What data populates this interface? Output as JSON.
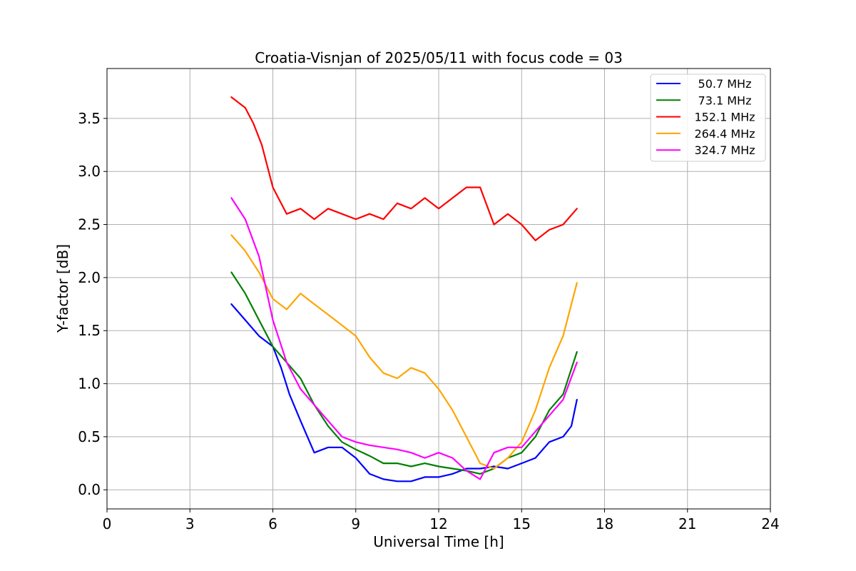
{
  "chart_data": {
    "type": "line",
    "title": "Croatia-Visnjan of 2025/05/11 with focus code = 03",
    "xlabel": "Universal Time [h]",
    "ylabel": "Y-factor [dB]",
    "xlim": [
      0,
      24
    ],
    "ylim": [
      -0.18,
      3.97
    ],
    "xticks": [
      0,
      3,
      6,
      9,
      12,
      15,
      18,
      21,
      24
    ],
    "xtick_labels": [
      "0",
      "3",
      "6",
      "9",
      "12",
      "15",
      "18",
      "21",
      "24"
    ],
    "yticks": [
      0.0,
      0.5,
      1.0,
      1.5,
      2.0,
      2.5,
      3.0,
      3.5
    ],
    "ytick_labels": [
      "0.0",
      "0.5",
      "1.0",
      "1.5",
      "2.0",
      "2.5",
      "3.0",
      "3.5"
    ],
    "grid": true,
    "legend_position": "top-right",
    "series": [
      {
        "name": "50.7 MHz",
        "color": "#0000ff",
        "x": [
          4.5,
          5.0,
          5.5,
          6.0,
          6.3,
          6.6,
          7.0,
          7.5,
          8.0,
          8.5,
          9.0,
          9.5,
          10.0,
          10.5,
          11.0,
          11.5,
          12.0,
          12.5,
          13.0,
          13.5,
          14.0,
          14.5,
          15.0,
          15.5,
          16.0,
          16.5,
          16.8,
          17.0
        ],
        "values": [
          1.75,
          1.6,
          1.45,
          1.35,
          1.15,
          0.9,
          0.65,
          0.35,
          0.4,
          0.4,
          0.3,
          0.15,
          0.1,
          0.08,
          0.08,
          0.12,
          0.12,
          0.15,
          0.2,
          0.2,
          0.22,
          0.2,
          0.25,
          0.3,
          0.45,
          0.5,
          0.6,
          0.85
        ]
      },
      {
        "name": "73.1 MHz",
        "color": "#008000",
        "x": [
          4.5,
          5.0,
          5.5,
          6.0,
          6.5,
          7.0,
          7.5,
          8.0,
          8.5,
          9.0,
          9.5,
          10.0,
          10.5,
          11.0,
          11.5,
          12.0,
          12.5,
          13.0,
          13.5,
          14.0,
          14.5,
          15.0,
          15.5,
          16.0,
          16.5,
          17.0
        ],
        "values": [
          2.05,
          1.85,
          1.6,
          1.35,
          1.2,
          1.05,
          0.8,
          0.6,
          0.45,
          0.38,
          0.32,
          0.25,
          0.25,
          0.22,
          0.25,
          0.22,
          0.2,
          0.18,
          0.15,
          0.2,
          0.3,
          0.35,
          0.5,
          0.75,
          0.9,
          1.3
        ]
      },
      {
        "name": "152.1 MHz",
        "color": "#ff0000",
        "x": [
          4.5,
          5.0,
          5.3,
          5.6,
          6.0,
          6.5,
          7.0,
          7.5,
          8.0,
          8.5,
          9.0,
          9.5,
          10.0,
          10.5,
          11.0,
          11.5,
          12.0,
          12.5,
          13.0,
          13.5,
          14.0,
          14.5,
          15.0,
          15.5,
          16.0,
          16.5,
          17.0
        ],
        "values": [
          3.7,
          3.6,
          3.45,
          3.25,
          2.85,
          2.6,
          2.65,
          2.55,
          2.65,
          2.6,
          2.55,
          2.6,
          2.55,
          2.7,
          2.65,
          2.75,
          2.65,
          2.75,
          2.85,
          2.85,
          2.5,
          2.6,
          2.5,
          2.35,
          2.45,
          2.5,
          2.65
        ]
      },
      {
        "name": "264.4 MHz",
        "color": "#ffa500",
        "x": [
          4.5,
          5.0,
          5.5,
          6.0,
          6.5,
          7.0,
          7.5,
          8.0,
          8.5,
          9.0,
          9.5,
          10.0,
          10.5,
          11.0,
          11.5,
          12.0,
          12.5,
          13.0,
          13.5,
          14.0,
          14.5,
          15.0,
          15.5,
          16.0,
          16.5,
          17.0
        ],
        "values": [
          2.4,
          2.25,
          2.05,
          1.8,
          1.7,
          1.85,
          1.75,
          1.65,
          1.55,
          1.45,
          1.25,
          1.1,
          1.05,
          1.15,
          1.1,
          0.95,
          0.75,
          0.5,
          0.25,
          0.2,
          0.3,
          0.45,
          0.75,
          1.15,
          1.45,
          1.95
        ]
      },
      {
        "name": "324.7 MHz",
        "color": "#ff00ff",
        "x": [
          4.5,
          5.0,
          5.5,
          6.0,
          6.5,
          7.0,
          7.5,
          8.0,
          8.5,
          9.0,
          9.5,
          10.0,
          10.5,
          11.0,
          11.5,
          12.0,
          12.5,
          13.0,
          13.5,
          14.0,
          14.5,
          15.0,
          15.5,
          16.0,
          16.5,
          17.0
        ],
        "values": [
          2.75,
          2.55,
          2.2,
          1.6,
          1.2,
          0.95,
          0.8,
          0.65,
          0.5,
          0.45,
          0.42,
          0.4,
          0.38,
          0.35,
          0.3,
          0.35,
          0.3,
          0.18,
          0.1,
          0.35,
          0.4,
          0.4,
          0.55,
          0.7,
          0.85,
          1.2
        ]
      }
    ]
  }
}
